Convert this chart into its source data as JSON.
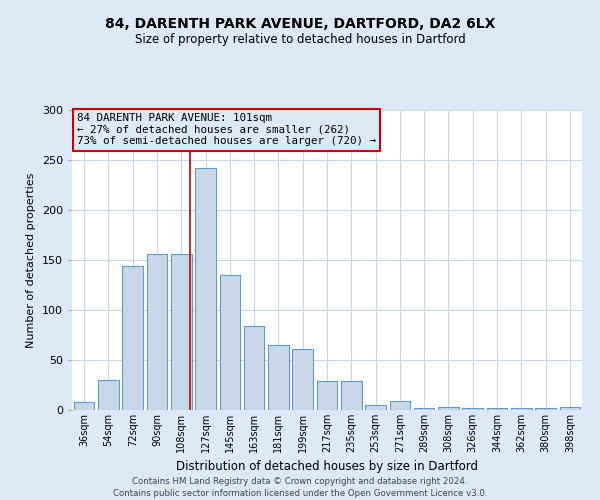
{
  "title1": "84, DARENTH PARK AVENUE, DARTFORD, DA2 6LX",
  "title2": "Size of property relative to detached houses in Dartford",
  "xlabel": "Distribution of detached houses by size in Dartford",
  "ylabel": "Number of detached properties",
  "bar_color": "#c8d8e8",
  "bar_edge_color": "#5b9bd5",
  "chart_bg_color": "#ffffff",
  "fig_bg_color": "#dce8f5",
  "grid_color": "#c8d8e8",
  "annotation_box_edge": "#cc0000",
  "annotation_line1": "84 DARENTH PARK AVENUE: 101sqm",
  "annotation_line2": "← 27% of detached houses are smaller (262)",
  "annotation_line3": "73% of semi-detached houses are larger (720) →",
  "property_line_x": 4,
  "property_line_color": "#cc0000",
  "categories": [
    "36sqm",
    "54sqm",
    "72sqm",
    "90sqm",
    "108sqm",
    "127sqm",
    "145sqm",
    "163sqm",
    "181sqm",
    "199sqm",
    "217sqm",
    "235sqm",
    "253sqm",
    "271sqm",
    "289sqm",
    "308sqm",
    "326sqm",
    "344sqm",
    "362sqm",
    "380sqm",
    "398sqm"
  ],
  "values": [
    8,
    30,
    144,
    156,
    156,
    242,
    135,
    84,
    65,
    61,
    29,
    29,
    5,
    9,
    2,
    3,
    2,
    2,
    2,
    2,
    3
  ],
  "ylim": [
    0,
    300
  ],
  "yticks": [
    0,
    50,
    100,
    150,
    200,
    250,
    300
  ],
  "footer1": "Contains HM Land Registry data © Crown copyright and database right 2024.",
  "footer2": "Contains public sector information licensed under the Open Government Licence v3.0."
}
